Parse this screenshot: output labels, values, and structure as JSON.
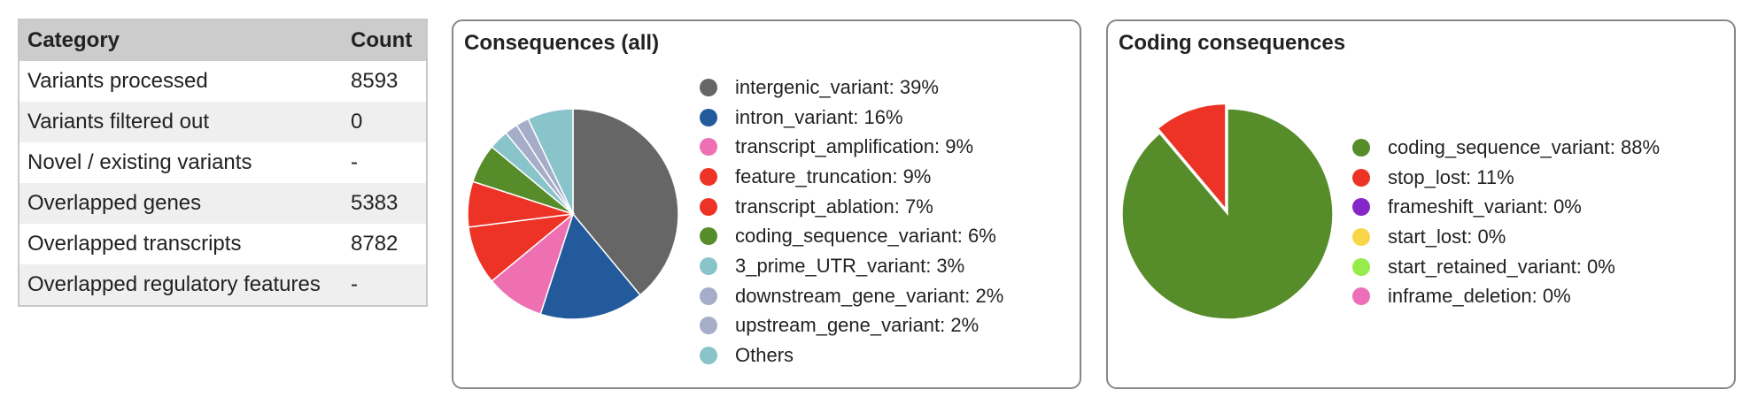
{
  "summary": {
    "headers": [
      "Category",
      "Count"
    ],
    "rows": [
      {
        "category": "Variants processed",
        "count": "8593"
      },
      {
        "category": "Variants filtered out",
        "count": "0"
      },
      {
        "category": "Novel / existing variants",
        "count": "-"
      },
      {
        "category": "Overlapped genes",
        "count": "5383"
      },
      {
        "category": "Overlapped transcripts",
        "count": "8782"
      },
      {
        "category": "Overlapped regulatory features",
        "count": "-"
      }
    ]
  },
  "chart_data": [
    {
      "type": "pie",
      "title": "Consequences (all)",
      "legend_position": "right",
      "slices": [
        {
          "label": "intergenic_variant: 39%",
          "value": 39,
          "color": "#666666"
        },
        {
          "label": "intron_variant: 16%",
          "value": 16,
          "color": "#225a9b"
        },
        {
          "label": "transcript_amplification: 9%",
          "value": 9,
          "color": "#ef70b2"
        },
        {
          "label": "feature_truncation: 9%",
          "value": 9,
          "color": "#ec3326"
        },
        {
          "label": "transcript_ablation: 7%",
          "value": 7,
          "color": "#ec3326"
        },
        {
          "label": "coding_sequence_variant: 6%",
          "value": 6,
          "color": "#568c29"
        },
        {
          "label": "3_prime_UTR_variant: 3%",
          "value": 3,
          "color": "#8ac4cb"
        },
        {
          "label": "downstream_gene_variant: 2%",
          "value": 2,
          "color": "#a5adc9"
        },
        {
          "label": "upstream_gene_variant: 2%",
          "value": 2,
          "color": "#a5adc9"
        },
        {
          "label": "Others",
          "value": 7,
          "color": "#8ac4cb"
        }
      ]
    },
    {
      "type": "pie",
      "title": "Coding consequences",
      "legend_position": "right",
      "slices": [
        {
          "label": "coding_sequence_variant: 88%",
          "value": 88,
          "color": "#568c29"
        },
        {
          "label": "stop_lost: 11%",
          "value": 11,
          "color": "#ec3326"
        },
        {
          "label": "frameshift_variant: 0%",
          "value": 0,
          "color": "#8427c8"
        },
        {
          "label": "start_lost: 0%",
          "value": 0,
          "color": "#f8d648"
        },
        {
          "label": "start_retained_variant: 0%",
          "value": 0,
          "color": "#95ec4a"
        },
        {
          "label": "inframe_deletion: 0%",
          "value": 0,
          "color": "#ec6fb8"
        }
      ]
    }
  ]
}
